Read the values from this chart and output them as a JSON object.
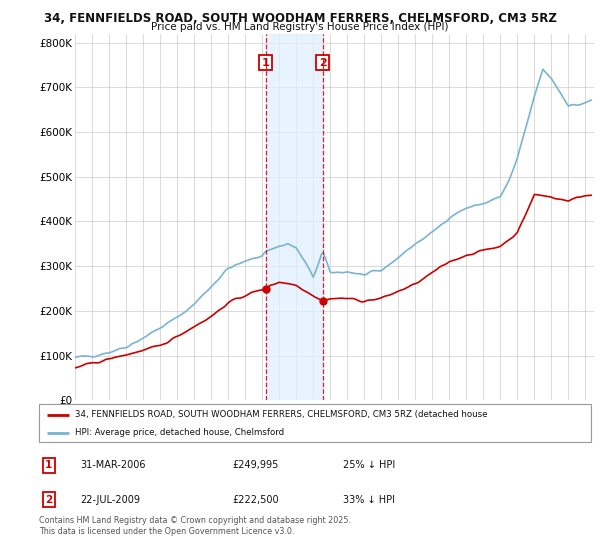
{
  "title1": "34, FENNFIELDS ROAD, SOUTH WOODHAM FERRERS, CHELMSFORD, CM3 5RZ",
  "title2": "Price paid vs. HM Land Registry's House Price Index (HPI)",
  "ylim": [
    0,
    820000
  ],
  "yticks": [
    0,
    100000,
    200000,
    300000,
    400000,
    500000,
    600000,
    700000,
    800000
  ],
  "ytick_labels": [
    "£0",
    "£100K",
    "£200K",
    "£300K",
    "£400K",
    "£500K",
    "£600K",
    "£700K",
    "£800K"
  ],
  "transaction1_x": 2006.21,
  "transaction1_y": 249995,
  "transaction2_x": 2009.55,
  "transaction2_y": 222500,
  "vline1_x": 2006.21,
  "vline2_x": 2009.55,
  "shade_x1": 2006.21,
  "shade_x2": 2009.55,
  "legend_property": "34, FENNFIELDS ROAD, SOUTH WOODHAM FERRERS, CHELMSFORD, CM3 5RZ (detached house",
  "legend_hpi": "HPI: Average price, detached house, Chelmsford",
  "footnote": "Contains HM Land Registry data © Crown copyright and database right 2025.\nThis data is licensed under the Open Government Licence v3.0.",
  "table_rows": [
    {
      "num": "1",
      "date": "31-MAR-2006",
      "price": "£249,995",
      "hpi": "25% ↓ HPI"
    },
    {
      "num": "2",
      "date": "22-JUL-2009",
      "price": "£222,500",
      "hpi": "33% ↓ HPI"
    }
  ],
  "hpi_color": "#7ab3d4",
  "property_color": "#cc0000",
  "vline_color": "#cc0000",
  "shade_color": "#ddeeff",
  "marker_color": "#cc0000",
  "label_color": "#cc0000",
  "grid_color": "#cccccc",
  "xmin": 1995.0,
  "xmax": 2025.5
}
